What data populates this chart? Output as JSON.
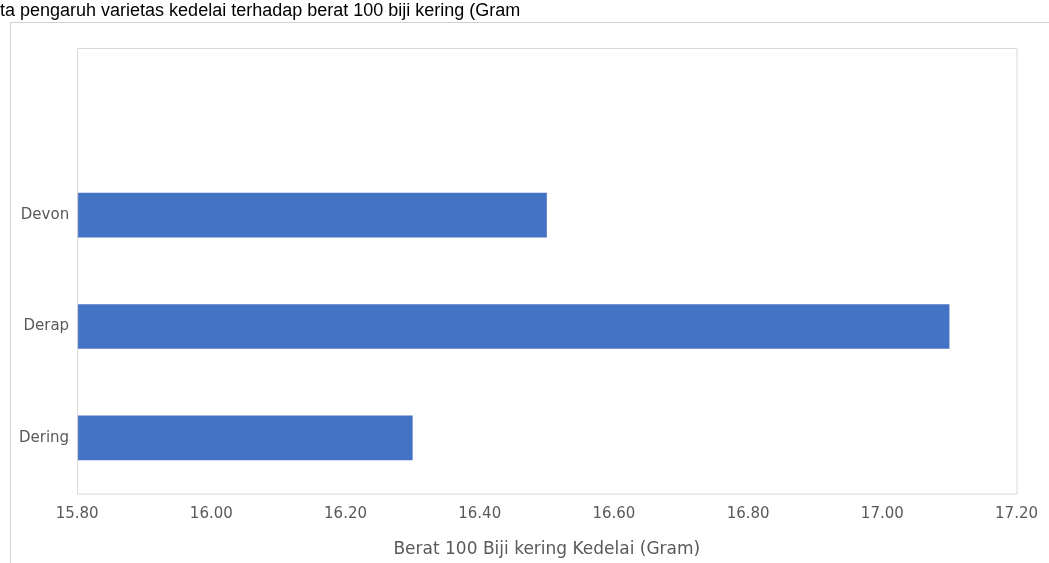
{
  "chart_data": {
    "type": "bar",
    "orientation": "horizontal",
    "title": "ta pengaruh varietas kedelai terhadap berat 100 biji kering (Gram",
    "xlabel": "Berat 100 Biji kering Kedelai (Gram)",
    "categories": [
      null,
      "Devon",
      "Derap",
      "Dering"
    ],
    "values": [
      null,
      16.5,
      17.1,
      16.3
    ],
    "color": "#4472c4",
    "xlim": [
      15.8,
      17.2
    ],
    "xticks": [
      {
        "value": 15.8,
        "label": "15.80"
      },
      {
        "value": 16,
        "label": "16.00"
      },
      {
        "value": 16.2,
        "label": "16.20"
      },
      {
        "value": 16.4,
        "label": "16.40"
      },
      {
        "value": 16.6,
        "label": "16.60"
      },
      {
        "value": 16.8,
        "label": "16.80"
      },
      {
        "value": 17,
        "label": "17.00"
      },
      {
        "value": 17.2,
        "label": "17.20"
      }
    ],
    "grid": false,
    "legend": false
  }
}
